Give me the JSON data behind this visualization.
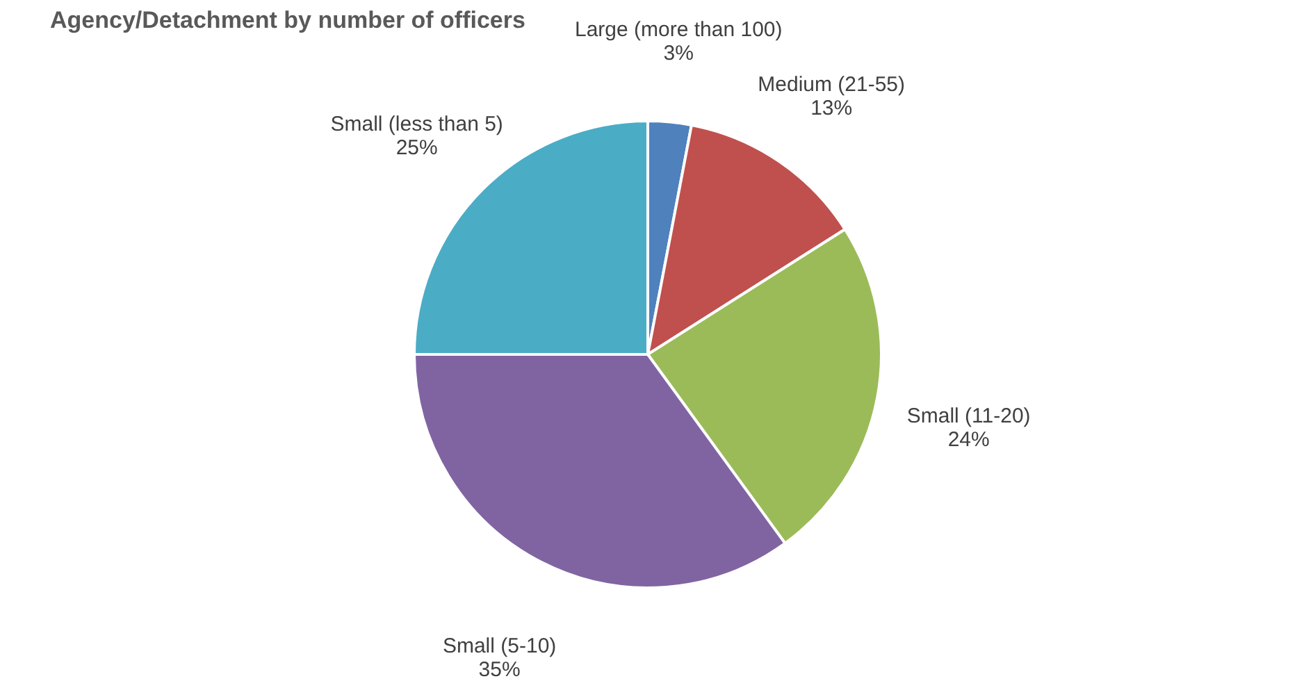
{
  "chart_data": {
    "type": "pie",
    "title": "Agency/Detachment by number of officers",
    "categories": [
      "Large (more than 100)",
      "Medium (21-55)",
      "Small (11-20)",
      "Small (5-10)",
      "Small (less than 5)"
    ],
    "values": [
      3,
      13,
      24,
      35,
      25
    ],
    "value_labels": [
      "3%",
      "13%",
      "24%",
      "35%",
      "25%"
    ],
    "colors": [
      "#4f81bd",
      "#c0504d",
      "#9bbb59",
      "#8064a2",
      "#4bacc6"
    ]
  }
}
